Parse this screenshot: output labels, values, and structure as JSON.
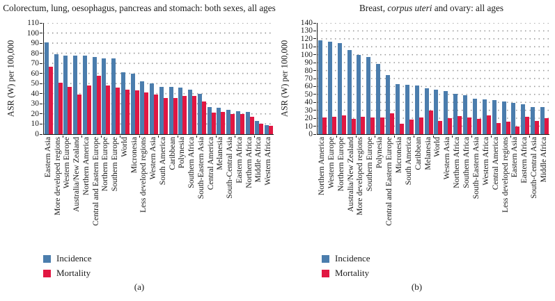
{
  "chart_data": [
    {
      "id": "a",
      "type": "bar",
      "caption": "(a)",
      "title": "Colorectum, lung, oesophagus, pancreas and stomach: both sexes, all ages",
      "title_parts": [
        {
          "text": "Colorectum, lung, oesophagus, pancreas and stomach: both sexes, all ages",
          "italic": false
        }
      ],
      "ylabel": "ASR (W) per 100,000",
      "ylim": [
        0,
        110
      ],
      "ystep": 10,
      "grid": "dotted-horizontal",
      "legend_position": "bottom-left",
      "legend": [
        {
          "label": "Incidence",
          "color": "#4b7dad"
        },
        {
          "label": "Mortality",
          "color": "#e11742"
        }
      ],
      "categories": [
        "Eastern Asia",
        "More developed regions",
        "Western Europe",
        "Australia/New Zealand",
        "Northern America",
        "Central and Eastern Europe",
        "Northern Europe",
        "Southern Europe",
        "World",
        "Micronesia",
        "Less developed regions",
        "Western Asia",
        "South America",
        "Caribbean",
        "Polynesia",
        "Southern Africa",
        "South-Eastern Asia",
        "Central America",
        "Melanesia",
        "South-Central Asia",
        "Eastern Africa",
        "Northern Africa",
        "Middle Africa",
        "Western Africa"
      ],
      "series": [
        {
          "name": "Incidence",
          "color": "#4b7dad",
          "values": [
            91,
            79,
            78,
            78,
            78,
            76,
            75,
            75,
            61,
            60,
            52,
            50,
            47,
            47,
            46,
            44,
            40,
            27,
            26,
            24,
            23,
            22,
            13,
            9
          ]
        },
        {
          "name": "Mortality",
          "color": "#e11742",
          "values": [
            67,
            51,
            47,
            39,
            48,
            58,
            48,
            46,
            44,
            43,
            41,
            39,
            36,
            36,
            38,
            38,
            32,
            21,
            22,
            20,
            20,
            17,
            10,
            8
          ]
        }
      ]
    },
    {
      "id": "b",
      "type": "bar",
      "caption": "(b)",
      "title": "Breast, corpus uteri and ovary: all ages",
      "title_parts": [
        {
          "text": "Breast, ",
          "italic": false
        },
        {
          "text": "corpus uteri",
          "italic": true
        },
        {
          "text": " and ovary: all ages",
          "italic": false
        }
      ],
      "ylabel": "ASR (W) per 100,000",
      "ylim": [
        0,
        140
      ],
      "ystep": 10,
      "grid": "dotted-horizontal",
      "legend_position": "bottom-left",
      "legend": [
        {
          "label": "Incidence",
          "color": "#4b7dad"
        },
        {
          "label": "Mortality",
          "color": "#e11742"
        }
      ],
      "categories": [
        "Northern America",
        "Western Europe",
        "Northern Europe",
        "Australia/New Zealand",
        "More developed regions",
        "Southern Europe",
        "Polynesia",
        "Central and Eastern Europe",
        "Micronesia",
        "South America",
        "Caribbean",
        "Melanesia",
        "World",
        "Western Asia",
        "Northern Africa",
        "Southern Africa",
        "South-Eastern Asia",
        "Western Africa",
        "Central America",
        "Less developed regions",
        "Eastern Asia",
        "Eastern Africa",
        "South-Central Asia",
        "Middle Africa"
      ],
      "series": [
        {
          "name": "Incidence",
          "color": "#4b7dad",
          "values": [
            118,
            116,
            115,
            106,
            100,
            97,
            88,
            74,
            63,
            62,
            61,
            58,
            56,
            54,
            51,
            49,
            45,
            44,
            43,
            41,
            39,
            38,
            34,
            34
          ]
        },
        {
          "name": "Mortality",
          "color": "#e11742",
          "values": [
            21,
            22,
            24,
            19,
            22,
            21,
            21,
            26,
            13,
            18,
            21,
            30,
            17,
            20,
            23,
            21,
            19,
            24,
            14,
            16,
            10,
            22,
            17,
            20
          ]
        }
      ]
    }
  ]
}
